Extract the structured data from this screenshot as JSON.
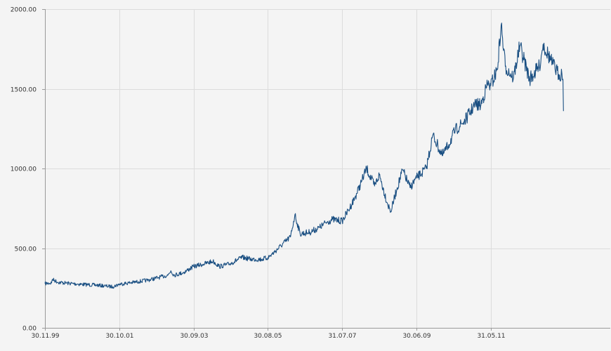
{
  "colors": {
    "series": "#1a4f82"
  },
  "chart_data": {
    "type": "line",
    "title": "",
    "xlabel": "",
    "ylabel": "",
    "x_range": [
      "1999-11-30",
      "2014-06-30"
    ],
    "ylim": [
      0,
      2000
    ],
    "y_ticks": [
      {
        "value": 0,
        "label": "0.00"
      },
      {
        "value": 500,
        "label": "500.00"
      },
      {
        "value": 1000,
        "label": "1000.00"
      },
      {
        "value": 1500,
        "label": "1500.00"
      },
      {
        "value": 2000,
        "label": "2000.00"
      }
    ],
    "x_ticks": [
      {
        "date": "1999-11-30",
        "label": "30.11.99"
      },
      {
        "date": "2001-10-30",
        "label": "30.10.01"
      },
      {
        "date": "2003-09-30",
        "label": "30.09.03"
      },
      {
        "date": "2005-08-30",
        "label": "30.08.05"
      },
      {
        "date": "2007-07-31",
        "label": "31.07.07"
      },
      {
        "date": "2009-06-30",
        "label": "30.06.09"
      },
      {
        "date": "2011-05-31",
        "label": "31.05.11"
      }
    ],
    "grid": true,
    "legend": "none",
    "series": [
      {
        "points": [
          [
            "1999-11-30",
            278
          ],
          [
            "2000-01-31",
            282
          ],
          [
            "2000-02-08",
            305
          ],
          [
            "2000-03-31",
            286
          ],
          [
            "2000-06-30",
            280
          ],
          [
            "2000-09-30",
            275
          ],
          [
            "2000-12-31",
            271
          ],
          [
            "2001-03-31",
            268
          ],
          [
            "2001-06-30",
            262
          ],
          [
            "2001-08-31",
            258
          ],
          [
            "2001-10-30",
            274
          ],
          [
            "2002-01-31",
            282
          ],
          [
            "2002-04-30",
            290
          ],
          [
            "2002-07-31",
            300
          ],
          [
            "2002-10-31",
            315
          ],
          [
            "2003-01-31",
            330
          ],
          [
            "2003-02-28",
            358
          ],
          [
            "2003-03-31",
            330
          ],
          [
            "2003-06-30",
            348
          ],
          [
            "2003-09-30",
            385
          ],
          [
            "2003-12-31",
            400
          ],
          [
            "2004-03-31",
            418
          ],
          [
            "2004-05-31",
            385
          ],
          [
            "2004-08-31",
            400
          ],
          [
            "2004-12-31",
            442
          ],
          [
            "2005-03-31",
            430
          ],
          [
            "2005-06-30",
            430
          ],
          [
            "2005-08-30",
            440
          ],
          [
            "2005-10-31",
            475
          ],
          [
            "2005-12-31",
            515
          ],
          [
            "2006-03-31",
            570
          ],
          [
            "2006-05-12",
            710
          ],
          [
            "2006-06-30",
            590
          ],
          [
            "2006-09-30",
            600
          ],
          [
            "2006-12-31",
            630
          ],
          [
            "2007-02-28",
            660
          ],
          [
            "2007-04-30",
            680
          ],
          [
            "2007-07-31",
            670
          ],
          [
            "2007-09-30",
            740
          ],
          [
            "2007-11-30",
            820
          ],
          [
            "2008-01-31",
            920
          ],
          [
            "2008-03-17",
            1000
          ],
          [
            "2008-05-31",
            890
          ],
          [
            "2008-07-15",
            960
          ],
          [
            "2008-09-30",
            780
          ],
          [
            "2008-10-31",
            730
          ],
          [
            "2008-12-31",
            880
          ],
          [
            "2009-02-20",
            990
          ],
          [
            "2009-04-30",
            880
          ],
          [
            "2009-06-30",
            940
          ],
          [
            "2009-09-30",
            1000
          ],
          [
            "2009-12-02",
            1210
          ],
          [
            "2010-02-28",
            1080
          ],
          [
            "2010-04-30",
            1150
          ],
          [
            "2010-06-30",
            1240
          ],
          [
            "2010-09-30",
            1300
          ],
          [
            "2010-12-31",
            1400
          ],
          [
            "2011-02-28",
            1400
          ],
          [
            "2011-04-30",
            1530
          ],
          [
            "2011-05-31",
            1520
          ],
          [
            "2011-07-31",
            1620
          ],
          [
            "2011-09-06",
            1900
          ],
          [
            "2011-10-15",
            1640
          ],
          [
            "2011-12-31",
            1570
          ],
          [
            "2012-02-29",
            1770
          ],
          [
            "2012-05-31",
            1560
          ],
          [
            "2012-08-31",
            1640
          ],
          [
            "2012-10-05",
            1780
          ],
          [
            "2012-12-31",
            1660
          ],
          [
            "2013-02-28",
            1590
          ],
          [
            "2013-03-31",
            1595
          ],
          [
            "2013-04-10",
            1560
          ],
          [
            "2013-04-15",
            1360
          ]
        ]
      }
    ]
  }
}
